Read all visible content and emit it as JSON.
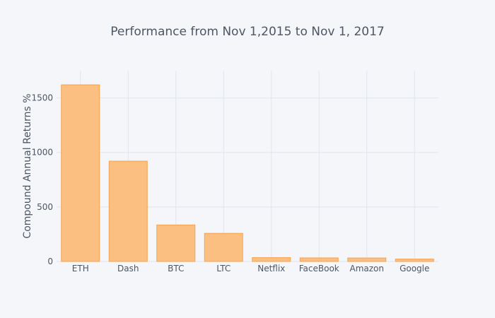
{
  "chart_data": {
    "type": "bar",
    "title": "Performance from Nov 1,2015 to Nov 1, 2017",
    "xlabel": "",
    "ylabel": "Compound Annual Returns %",
    "categories": [
      "ETH",
      "Dash",
      "BTC",
      "LTC",
      "Netflix",
      "FaceBook",
      "Amazon",
      "Google"
    ],
    "values": [
      1620,
      920,
      335,
      258,
      35,
      33,
      32,
      22
    ],
    "ylim": [
      0,
      1750
    ],
    "yticks": [
      0,
      500,
      1000,
      1500
    ],
    "ytick_labels": [
      "0",
      "500",
      "1000",
      "1500"
    ],
    "grid": true,
    "colors": {
      "bar_fill": "#fbbf82",
      "bar_stroke": "#f7a24f",
      "background": "#f4f6fa",
      "text": "#4d5663"
    }
  }
}
